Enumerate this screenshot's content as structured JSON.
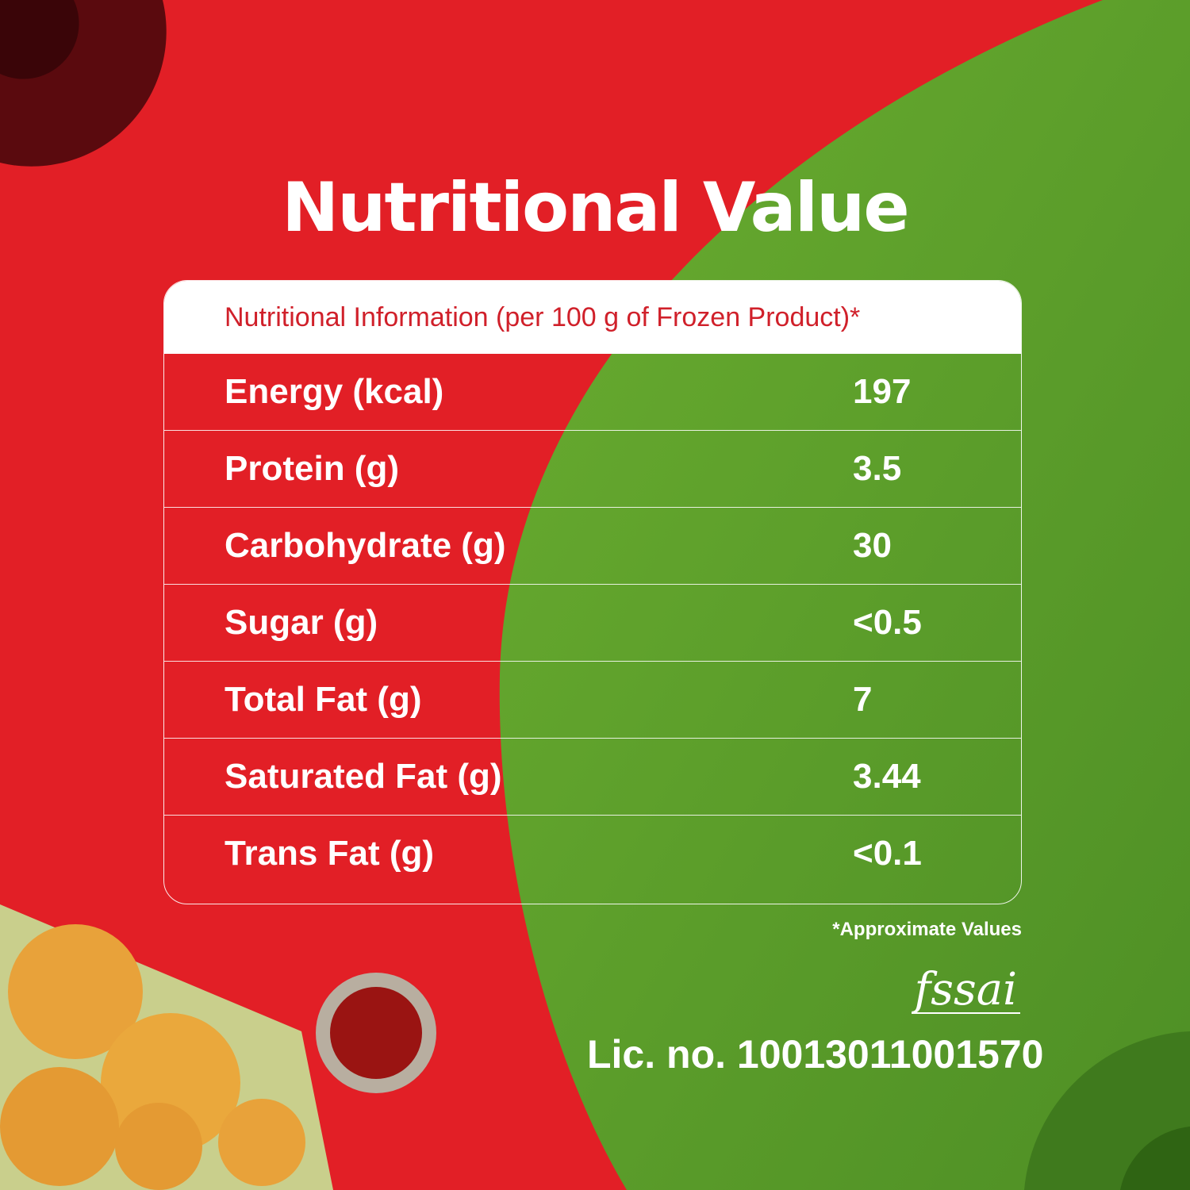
{
  "colors": {
    "red": "#e21f26",
    "green": "#5f9f2c",
    "dark_red": "#5a0a0e",
    "header_text": "#d0202a"
  },
  "title": "Nutritional Value",
  "table": {
    "header": "Nutritional Information (per 100 g of Frozen Product)*",
    "rows": [
      {
        "name": "Energy (kcal)",
        "value": "197"
      },
      {
        "name": "Protein (g)",
        "value": "3.5"
      },
      {
        "name": "Carbohydrate (g)",
        "value": "30"
      },
      {
        "name": "Sugar (g)",
        "value": "<0.5"
      },
      {
        "name": "Total Fat (g)",
        "value": "7"
      },
      {
        "name": "Saturated Fat (g)",
        "value": "3.44"
      },
      {
        "name": "Trans Fat (g)",
        "value": "<0.1"
      }
    ]
  },
  "footnote": "*Approximate Values",
  "logo": "fssai",
  "license": "Lic. no. 10013011001570"
}
